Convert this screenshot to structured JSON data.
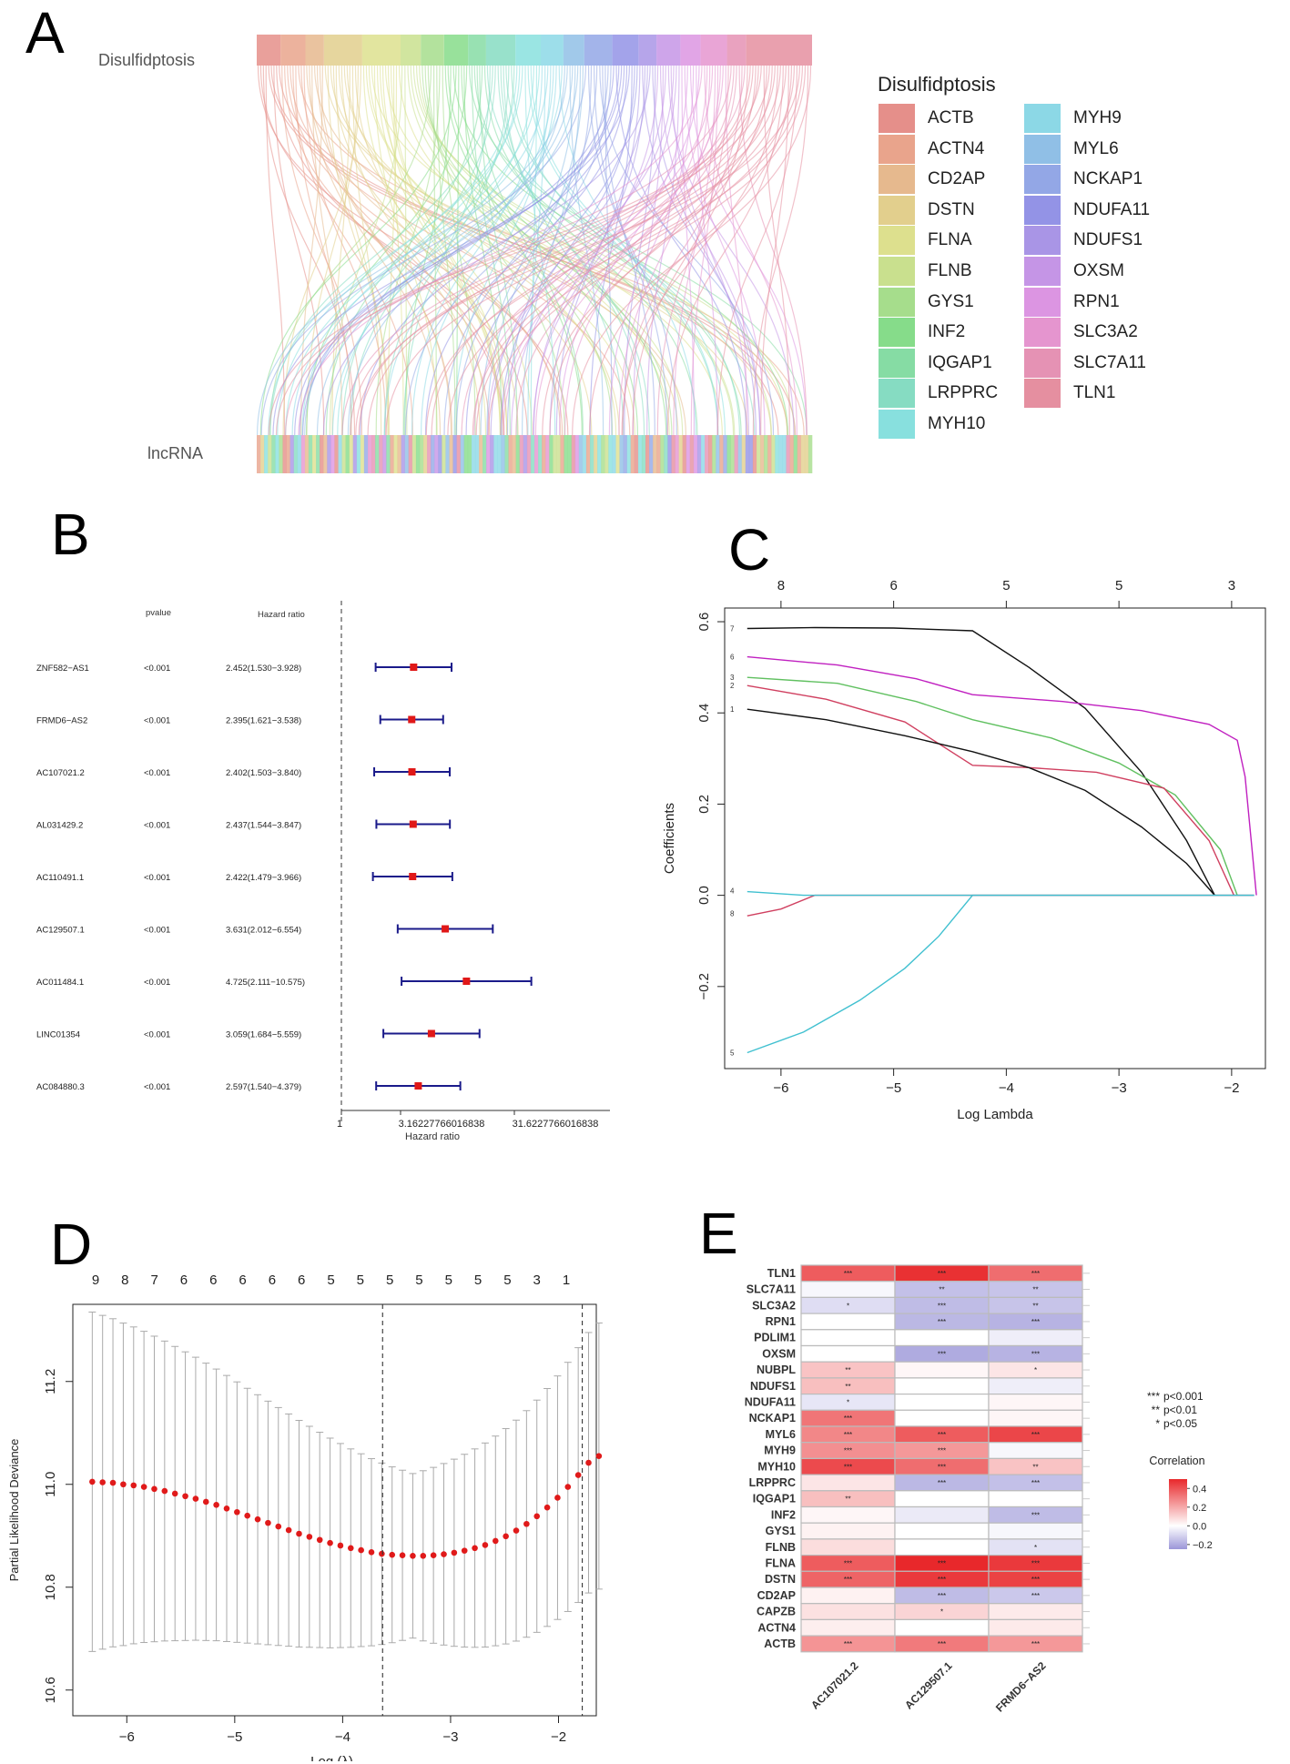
{
  "panels": {
    "a": "A",
    "b": "B",
    "c": "C",
    "d": "D",
    "e": "E"
  },
  "chart_data": [
    {
      "type": "sankey",
      "panel": "A",
      "top_label": "Disulfidptosis",
      "bottom_label": "lncRNA",
      "legend_title": "Disulfidptosis",
      "legend": [
        {
          "name": "ACTB",
          "color": "#e58f8a"
        },
        {
          "name": "ACTN4",
          "color": "#e9a48c"
        },
        {
          "name": "CD2AP",
          "color": "#e6b98e"
        },
        {
          "name": "DSTN",
          "color": "#e2cf8d"
        },
        {
          "name": "FLNA",
          "color": "#dde08e"
        },
        {
          "name": "FLNB",
          "color": "#c9e08e"
        },
        {
          "name": "GYS1",
          "color": "#a6dd8c"
        },
        {
          "name": "INF2",
          "color": "#86dc8a"
        },
        {
          "name": "IQGAP1",
          "color": "#86dca4"
        },
        {
          "name": "LRPPRC",
          "color": "#86dcc2"
        },
        {
          "name": "MYH10",
          "color": "#88e0de"
        },
        {
          "name": "MYH9",
          "color": "#8cd8e6"
        },
        {
          "name": "MYL6",
          "color": "#90bfe6"
        },
        {
          "name": "NCKAP1",
          "color": "#93a7e6"
        },
        {
          "name": "NDUFA11",
          "color": "#9393e6"
        },
        {
          "name": "NDUFS1",
          "color": "#a995e6"
        },
        {
          "name": "OXSM",
          "color": "#c595e6"
        },
        {
          "name": "RPN1",
          "color": "#dc95e2"
        },
        {
          "name": "SLC3A2",
          "color": "#e595cf"
        },
        {
          "name": "SLC7A11",
          "color": "#e592b4"
        },
        {
          "name": "TLN1",
          "color": "#e58fa0"
        }
      ]
    },
    {
      "type": "forest",
      "panel": "B",
      "headers": {
        "pvalue": "pvalue",
        "hr": "Hazard ratio"
      },
      "rows": [
        {
          "gene": "ZNF582−AS1",
          "p": "<0.001",
          "hr_text": "2.452(1.530−3.928)",
          "hr": 2.452,
          "lo": 1.53,
          "hi": 3.928
        },
        {
          "gene": "FRMD6−AS2",
          "p": "<0.001",
          "hr_text": "2.395(1.621−3.538)",
          "hr": 2.395,
          "lo": 1.621,
          "hi": 3.538
        },
        {
          "gene": "AC107021.2",
          "p": "<0.001",
          "hr_text": "2.402(1.503−3.840)",
          "hr": 2.402,
          "lo": 1.503,
          "hi": 3.84
        },
        {
          "gene": "AL031429.2",
          "p": "<0.001",
          "hr_text": "2.437(1.544−3.847)",
          "hr": 2.437,
          "lo": 1.544,
          "hi": 3.847
        },
        {
          "gene": "AC110491.1",
          "p": "<0.001",
          "hr_text": "2.422(1.479−3.966)",
          "hr": 2.422,
          "lo": 1.479,
          "hi": 3.966
        },
        {
          "gene": "AC129507.1",
          "p": "<0.001",
          "hr_text": "3.631(2.012−6.554)",
          "hr": 3.631,
          "lo": 2.012,
          "hi": 6.554
        },
        {
          "gene": "AC011484.1",
          "p": "<0.001",
          "hr_text": "4.725(2.111−10.575)",
          "hr": 4.725,
          "lo": 2.111,
          "hi": 10.575
        },
        {
          "gene": "LINC01354",
          "p": "<0.001",
          "hr_text": "3.059(1.684−5.559)",
          "hr": 3.059,
          "lo": 1.684,
          "hi": 5.559
        },
        {
          "gene": "AC084880.3",
          "p": "<0.001",
          "hr_text": "2.597(1.540−4.379)",
          "hr": 2.597,
          "lo": 1.54,
          "hi": 4.379
        }
      ],
      "xticks": [
        "1",
        "3.16227766016838",
        "31.6227766016838"
      ],
      "xlabel": "Hazard ratio"
    },
    {
      "type": "line",
      "panel": "C",
      "xlabel": "Log Lambda",
      "ylabel": "Coefficients",
      "xlim": [
        -6.5,
        -1.7
      ],
      "ylim": [
        -0.38,
        0.63
      ],
      "xticks": [
        "−6",
        "−5",
        "−4",
        "−3",
        "−2"
      ],
      "xtick_values": [
        -6,
        -5,
        -4,
        -3,
        -2
      ],
      "yticks": [
        "−0.2",
        "0.0",
        "0.2",
        "0.4",
        "0.6"
      ],
      "ytick_values": [
        -0.2,
        0,
        0.2,
        0.4,
        0.6
      ],
      "top_ticks": [
        "8",
        "6",
        "5",
        "5",
        "3"
      ],
      "top_tick_values": [
        -6,
        -5,
        -4,
        -3,
        -2
      ],
      "series": [
        {
          "name": "7",
          "color": "#111111",
          "x": [
            -6.3,
            -5.7,
            -5.0,
            -4.3,
            -3.8,
            -3.3,
            -2.8,
            -2.4,
            -2.15
          ],
          "y": [
            0.585,
            0.587,
            0.586,
            0.58,
            0.5,
            0.41,
            0.27,
            0.12,
            0.0
          ]
        },
        {
          "name": "6",
          "color": "#c020c0",
          "x": [
            -6.3,
            -5.5,
            -4.8,
            -4.3,
            -3.5,
            -2.8,
            -2.2,
            -1.95,
            -1.88,
            -1.78
          ],
          "y": [
            0.523,
            0.505,
            0.475,
            0.44,
            0.425,
            0.405,
            0.375,
            0.34,
            0.26,
            0.0
          ]
        },
        {
          "name": "3",
          "color": "#60c060",
          "x": [
            -6.3,
            -5.5,
            -4.8,
            -4.3,
            -3.6,
            -3.0,
            -2.5,
            -2.1,
            -1.95
          ],
          "y": [
            0.478,
            0.465,
            0.425,
            0.385,
            0.345,
            0.29,
            0.22,
            0.1,
            0.0
          ]
        },
        {
          "name": "2",
          "color": "#d04060",
          "x": [
            -6.3,
            -5.6,
            -4.9,
            -4.3,
            -3.8,
            -3.2,
            -2.6,
            -2.2,
            -1.98
          ],
          "y": [
            0.46,
            0.43,
            0.38,
            0.285,
            0.28,
            0.27,
            0.235,
            0.12,
            0.0
          ]
        },
        {
          "name": "1",
          "color": "#111111",
          "x": [
            -6.3,
            -5.6,
            -4.9,
            -4.3,
            -3.8,
            -3.3,
            -2.8,
            -2.4,
            -2.15
          ],
          "y": [
            0.408,
            0.385,
            0.35,
            0.315,
            0.28,
            0.23,
            0.15,
            0.07,
            0.0
          ]
        },
        {
          "name": "5",
          "color": "#40c0d0",
          "x": [
            -6.3,
            -5.8,
            -5.3,
            -4.9,
            -4.6,
            -4.3,
            -3.0,
            -1.8
          ],
          "y": [
            -0.345,
            -0.3,
            -0.23,
            -0.16,
            -0.09,
            0.0,
            0.0,
            0.0
          ]
        },
        {
          "name": "8",
          "color": "#d04060",
          "x": [
            -6.3,
            -6.0,
            -5.7,
            -5.0,
            -1.8
          ],
          "y": [
            -0.045,
            -0.03,
            0.0,
            0.0,
            0.0
          ]
        },
        {
          "name": "4",
          "color": "#40c0d0",
          "x": [
            -6.3,
            -5.8,
            -1.8
          ],
          "y": [
            0.008,
            0.0,
            0.0
          ]
        }
      ],
      "line_labels": [
        "7",
        "6",
        "3",
        "2",
        "1",
        "4",
        "8",
        "5"
      ]
    },
    {
      "type": "scatter",
      "panel": "D",
      "xlabel": "Log (λ)",
      "ylabel": "Partial Likelihood Deviance",
      "xlim": [
        -6.5,
        -1.65
      ],
      "ylim": [
        10.55,
        11.35
      ],
      "xticks": [
        "−6",
        "−5",
        "−4",
        "−3",
        "−2"
      ],
      "xtick_values": [
        -6,
        -5,
        -4,
        -3,
        -2
      ],
      "yticks": [
        "10.6",
        "10.8",
        "11.0",
        "11.2"
      ],
      "ytick_values": [
        10.6,
        10.8,
        11.0,
        11.2
      ],
      "top_ticks": [
        "9",
        "8",
        "7",
        "6",
        "6",
        "6",
        "6",
        "6",
        "5",
        "5",
        "5",
        "5",
        "5",
        "5",
        "5",
        "3",
        "1"
      ],
      "vlines": [
        -3.63,
        -1.78
      ],
      "x_start": -6.32,
      "x_step": 0.0958,
      "values": [
        11.005,
        11.004,
        11.003,
        11.0,
        10.998,
        10.995,
        10.991,
        10.987,
        10.982,
        10.977,
        10.972,
        10.966,
        10.96,
        10.953,
        10.946,
        10.939,
        10.932,
        10.925,
        10.918,
        10.911,
        10.904,
        10.898,
        10.892,
        10.886,
        10.881,
        10.876,
        10.872,
        10.868,
        10.865,
        10.863,
        10.862,
        10.861,
        10.861,
        10.862,
        10.864,
        10.867,
        10.871,
        10.876,
        10.882,
        10.89,
        10.899,
        10.91,
        10.923,
        10.938,
        10.955,
        10.974,
        10.995,
        11.018,
        11.042,
        11.055
      ],
      "err_lo": 0.32,
      "err_hi": 0.32
    },
    {
      "type": "heatmap",
      "panel": "E",
      "rows": [
        "TLN1",
        "SLC7A11",
        "SLC3A2",
        "RPN1",
        "PDLIM1",
        "OXSM",
        "NUBPL",
        "NDUFS1",
        "NDUFA11",
        "NCKAP1",
        "MYL6",
        "MYH9",
        "MYH10",
        "LRPPRC",
        "IQGAP1",
        "INF2",
        "GYS1",
        "FLNB",
        "FLNA",
        "DSTN",
        "CD2AP",
        "CAPZB",
        "ACTN4",
        "ACTB"
      ],
      "cols": [
        "AC107021.2",
        "AC129507.1",
        "FRMD6−AS2"
      ],
      "values": [
        [
          0.38,
          0.48,
          0.34
        ],
        [
          -0.02,
          -0.15,
          -0.14
        ],
        [
          -0.08,
          -0.16,
          -0.14
        ],
        [
          0.0,
          -0.17,
          -0.18
        ],
        [
          0.0,
          0.0,
          -0.04
        ],
        [
          0.0,
          -0.2,
          -0.18
        ],
        [
          0.14,
          0.02,
          0.06
        ],
        [
          0.15,
          0.0,
          -0.04
        ],
        [
          -0.06,
          0.0,
          0.02
        ],
        [
          0.32,
          0.0,
          0.02
        ],
        [
          0.28,
          0.38,
          0.43
        ],
        [
          0.26,
          0.24,
          -0.02
        ],
        [
          0.42,
          0.34,
          0.14
        ],
        [
          0.06,
          -0.17,
          -0.15
        ],
        [
          0.15,
          0.0,
          0.0
        ],
        [
          0.02,
          -0.05,
          -0.16
        ],
        [
          0.03,
          0.0,
          -0.02
        ],
        [
          0.08,
          0.0,
          -0.07
        ],
        [
          0.38,
          0.5,
          0.46
        ],
        [
          0.36,
          0.46,
          0.44
        ],
        [
          0.03,
          -0.16,
          -0.13
        ],
        [
          0.07,
          0.1,
          0.05
        ],
        [
          0.04,
          0.0,
          0.05
        ],
        [
          0.25,
          0.31,
          0.24
        ]
      ],
      "stars": [
        [
          "***",
          "***",
          "***"
        ],
        [
          "",
          "**",
          "**"
        ],
        [
          "*",
          "***",
          "**"
        ],
        [
          "",
          "***",
          "***"
        ],
        [
          "",
          "",
          ""
        ],
        [
          "",
          "***",
          "***"
        ],
        [
          "**",
          "",
          "*"
        ],
        [
          "**",
          "",
          ""
        ],
        [
          "*",
          "",
          ""
        ],
        [
          "***",
          "",
          ""
        ],
        [
          "***",
          "***",
          "***"
        ],
        [
          "***",
          "***",
          ""
        ],
        [
          "***",
          "***",
          "**"
        ],
        [
          "",
          "***",
          "***"
        ],
        [
          "**",
          "",
          ""
        ],
        [
          "",
          "",
          "***"
        ],
        [
          "",
          "",
          ""
        ],
        [
          "",
          "",
          "*"
        ],
        [
          "***",
          "***",
          "***"
        ],
        [
          "***",
          "***",
          "***"
        ],
        [
          "",
          "***",
          "***"
        ],
        [
          "",
          "*",
          ""
        ],
        [
          "",
          "",
          ""
        ],
        [
          "***",
          "***",
          "***"
        ]
      ],
      "sig_legend": [
        {
          "stars": "***",
          "text": "p<0.001"
        },
        {
          "stars": "**",
          "text": "p<0.01"
        },
        {
          "stars": "*",
          "text": "p<0.05"
        }
      ],
      "colorbar_title": "Correlation",
      "colorbar_ticks": [
        "0.4",
        "0.2",
        "0.0",
        "−0.2"
      ],
      "colorbar_values": [
        0.4,
        0.2,
        0.0,
        -0.2
      ],
      "color_range": [
        -0.25,
        0.5
      ],
      "colors": {
        "neg": "#9b96d8",
        "mid": "#ffffff",
        "pos": "#e8282b"
      }
    }
  ]
}
